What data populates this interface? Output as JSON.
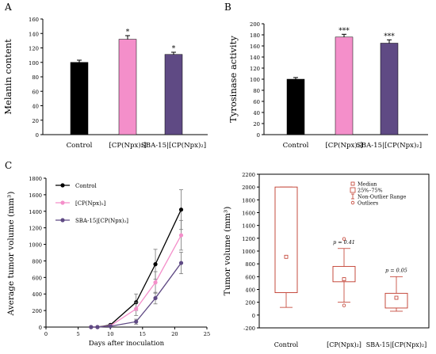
{
  "chart_data": [
    {
      "panel": "A",
      "type": "bar",
      "ylabel": "Melanin content",
      "ylim": [
        0,
        160
      ],
      "yticks": [
        0,
        20,
        40,
        60,
        80,
        100,
        120,
        140,
        160
      ],
      "categories": [
        "Control",
        "[CP(Npx)₂]",
        "SBA-15|[CP(Npx)₂]"
      ],
      "values": [
        100,
        132,
        111
      ],
      "errors": [
        3,
        5,
        3
      ],
      "annotations": [
        "",
        "*",
        "*"
      ],
      "colors": [
        "#000000",
        "#f48fca",
        "#5f4a84"
      ]
    },
    {
      "panel": "B",
      "type": "bar",
      "ylabel": "Tyrosinase activity",
      "ylim": [
        0,
        200
      ],
      "yticks": [
        0,
        20,
        40,
        60,
        80,
        100,
        120,
        140,
        160,
        180,
        200
      ],
      "categories": [
        "Control",
        "[CP(Npx)₂]",
        "SBA-15|[CP(Npx)₂]"
      ],
      "values": [
        100,
        176,
        165
      ],
      "errors": [
        3,
        5,
        6
      ],
      "annotations": [
        "",
        "***",
        "***"
      ],
      "colors": [
        "#000000",
        "#f48fca",
        "#5f4a84"
      ]
    },
    {
      "panel": "C",
      "type": "line",
      "xlabel": "Days after inoculation",
      "ylabel": "Average tumor  volume (mm³)",
      "xlim": [
        0,
        25
      ],
      "ylim": [
        0,
        1800
      ],
      "xticks": [
        0,
        5,
        10,
        15,
        20,
        25
      ],
      "yticks": [
        0,
        200,
        400,
        600,
        800,
        1000,
        1200,
        1400,
        1600,
        1800
      ],
      "x": [
        7,
        8,
        10,
        14,
        17,
        21
      ],
      "series": [
        {
          "name": "Control",
          "color": "#000000",
          "values": [
            0,
            0,
            25,
            300,
            760,
            1420
          ],
          "errors": [
            0,
            0,
            10,
            100,
            180,
            240
          ]
        },
        {
          "name": "[CP(Npx)₂]",
          "color": "#f48fca",
          "values": [
            0,
            0,
            15,
            220,
            540,
            1110
          ],
          "errors": [
            0,
            0,
            8,
            80,
            130,
            180
          ]
        },
        {
          "name": "SBA-15|[CP(Npx)₂]",
          "color": "#5f4a84",
          "values": [
            0,
            0,
            10,
            65,
            350,
            775
          ],
          "errors": [
            0,
            0,
            5,
            30,
            70,
            130
          ]
        }
      ]
    },
    {
      "panel": "D",
      "type": "box",
      "ylabel": "Tumor volume (mm³)",
      "ylim": [
        -200,
        2200
      ],
      "yticks": [
        -200,
        0,
        200,
        400,
        600,
        800,
        1000,
        1200,
        1400,
        1600,
        1800,
        2000,
        2200
      ],
      "categories": [
        "Control",
        "[CP(Npx)₂]",
        "SBA-15|[CP(Npx)₂]"
      ],
      "boxes": [
        {
          "q1": 350,
          "q3": 2000,
          "median": 910,
          "whisker_low": 120,
          "whisker_high": 2000,
          "outliers": []
        },
        {
          "q1": 520,
          "q3": 760,
          "median": 560,
          "whisker_low": 200,
          "whisker_high": 1040,
          "outliers": [
            1190,
            150
          ]
        },
        {
          "q1": 110,
          "q3": 340,
          "median": 270,
          "whisker_low": 60,
          "whisker_high": 600,
          "outliers": []
        }
      ],
      "annotations": [
        "",
        "p = 0.41",
        "p = 0.05"
      ],
      "legend": [
        "Median",
        "25%–75%",
        "Non-Outlier Range",
        "Outliers"
      ],
      "color": "#c0392b"
    }
  ],
  "panel_letters": [
    "A",
    "B",
    "C"
  ]
}
